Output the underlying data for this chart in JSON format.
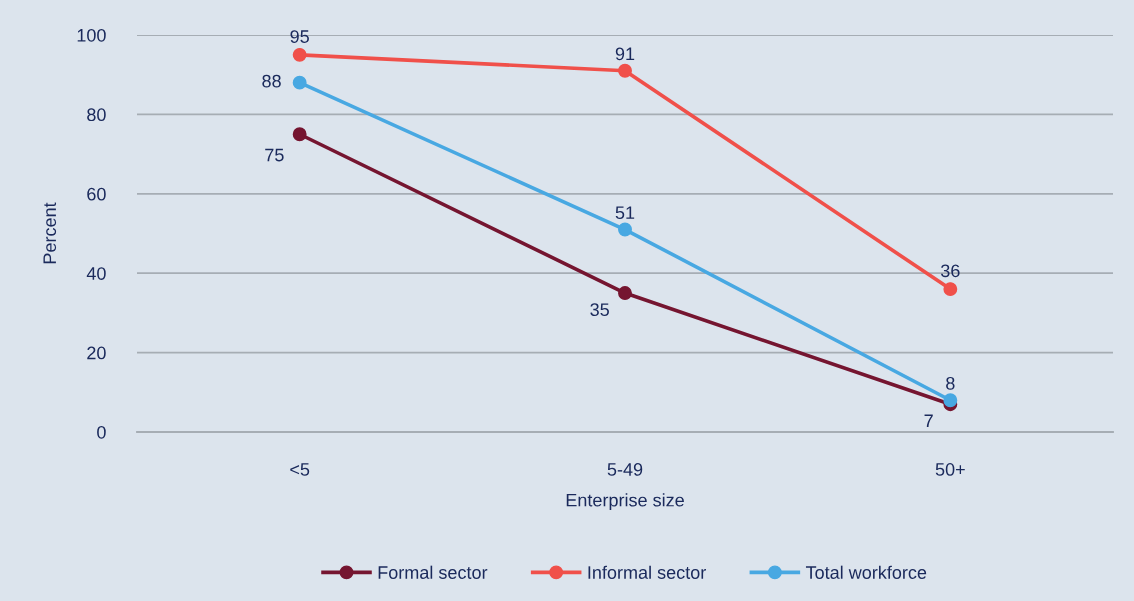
{
  "chart_data": {
    "type": "line",
    "xlabel": "Enterprise size",
    "ylabel": "Percent",
    "categories": [
      "<5",
      "5-49",
      "50+"
    ],
    "series": [
      {
        "name": "Formal sector",
        "color": "#751530",
        "values": [
          75,
          35,
          7
        ]
      },
      {
        "name": "Informal sector",
        "color": "#f0504a",
        "values": [
          95,
          91,
          36
        ]
      },
      {
        "name": "Total workforce",
        "color": "#48a8e2",
        "values": [
          88,
          51,
          8
        ]
      }
    ],
    "ylim": [
      0,
      100
    ],
    "yticks": [
      0,
      20,
      40,
      60,
      80,
      100
    ],
    "grid": "y",
    "legend": "bottom",
    "marker": "circle",
    "line_style": "solid",
    "data_labels": true
  }
}
